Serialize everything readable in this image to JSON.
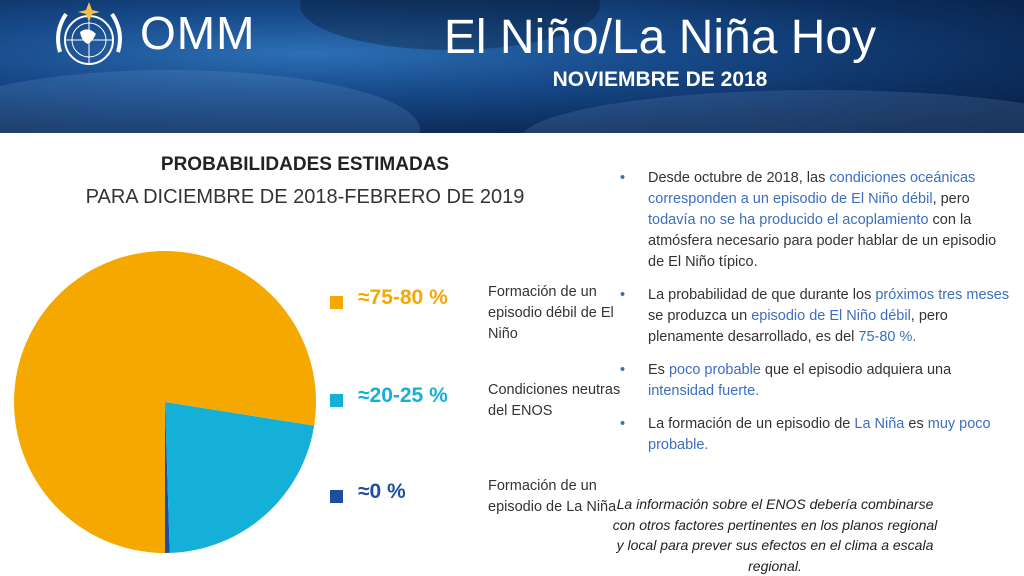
{
  "header": {
    "logo_text": "OMM",
    "title": "El Niño/La Niña Hoy",
    "subtitle": "NOVIEMBRE DE 2018"
  },
  "headings": {
    "line1": "PROBABILIDADES ESTIMADAS",
    "line2": "PARA DICIEMBRE DE 2018-FEBRERO DE 2019"
  },
  "chart_data": {
    "type": "pie",
    "title": "PROBABILIDADES ESTIMADAS PARA DICIEMBRE DE 2018-FEBRERO DE 2019",
    "slices": [
      {
        "label": "≈75-80 %",
        "description": "Formación de un episodio débil de El Niño",
        "value": 77.5,
        "color": "#f5a800"
      },
      {
        "label": "≈20-25 %",
        "description": "Condiciones neutras del ENOS",
        "value": 22,
        "color": "#14b0d8"
      },
      {
        "label": "≈0 %",
        "description": "Formación de un episodio de La Niña",
        "value": 0.5,
        "color": "#1d4fa0"
      }
    ],
    "legend_position": "right"
  },
  "bullets": [
    [
      {
        "t": "Desde octubre de 2018, las "
      },
      {
        "t": "condiciones oceánicas corresponden a un episodio de El Niño débil",
        "hl": true
      },
      {
        "t": ", pero "
      },
      {
        "t": "todavía no se ha producido el acoplamiento",
        "hl": true
      },
      {
        "t": " con la atmósfera necesario para poder hablar de un episodio de El Niño típico."
      }
    ],
    [
      {
        "t": "La probabilidad de que durante los "
      },
      {
        "t": "próximos tres meses",
        "hl": true
      },
      {
        "t": " se produzca un "
      },
      {
        "t": "episodio de El Niño débil",
        "hl": true
      },
      {
        "t": ", pero plenamente desarrollado, es del "
      },
      {
        "t": "75-80 %.",
        "hl": true
      }
    ],
    [
      {
        "t": "Es "
      },
      {
        "t": "poco probable",
        "hl": true
      },
      {
        "t": " que el episodio adquiera una "
      },
      {
        "t": "intensidad fuerte.",
        "hl": true
      }
    ],
    [
      {
        "t": "La formación de un episodio de "
      },
      {
        "t": "La Niña",
        "hl": true
      },
      {
        "t": " es "
      },
      {
        "t": "muy poco probable.",
        "hl": true
      }
    ]
  ],
  "note": "La información sobre el ENOS debería combinarse con otros factores pertinentes en los planos regional y local para prever sus efectos en el clima a escala regional.",
  "colors": {
    "header_bg": "#174a8a",
    "highlight": "#3c6fbd"
  }
}
